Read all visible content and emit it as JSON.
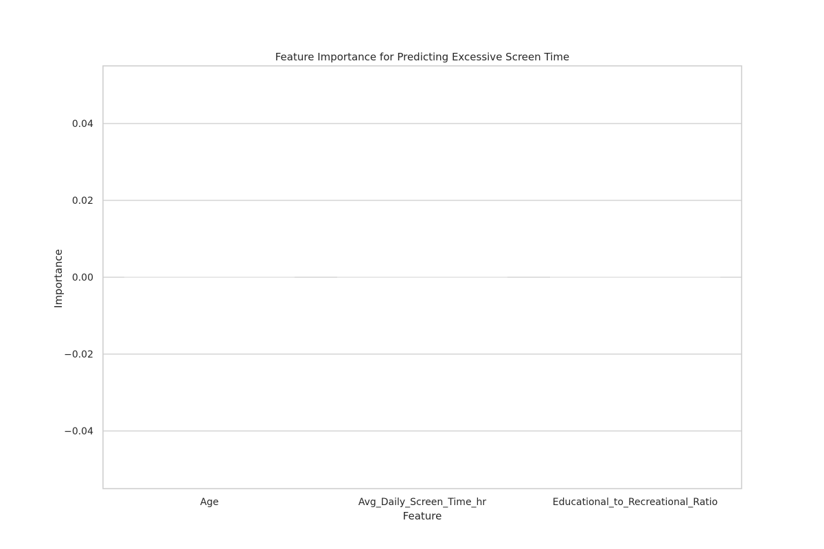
{
  "chart_data": {
    "type": "bar",
    "title": "Feature Importance for Predicting Excessive Screen Time",
    "xlabel": "Feature",
    "ylabel": "Importance",
    "categories": [
      "Age",
      "Avg_Daily_Screen_Time_hr",
      "Educational_to_Recreational_Ratio"
    ],
    "values": [
      0.0,
      0.0,
      0.0
    ],
    "ylim": [
      -0.055,
      0.055
    ],
    "yticks": [
      0.04,
      0.02,
      0.0,
      -0.02,
      -0.04
    ],
    "ytick_labels": [
      "0.04",
      "0.02",
      "0.00",
      "−0.02",
      "−0.04"
    ],
    "grid": "horizontal",
    "style": {
      "grid_color": "#cccccc",
      "spine_color": "#cccccc",
      "text_color": "#262626",
      "bar_color": "#dddddd"
    }
  }
}
